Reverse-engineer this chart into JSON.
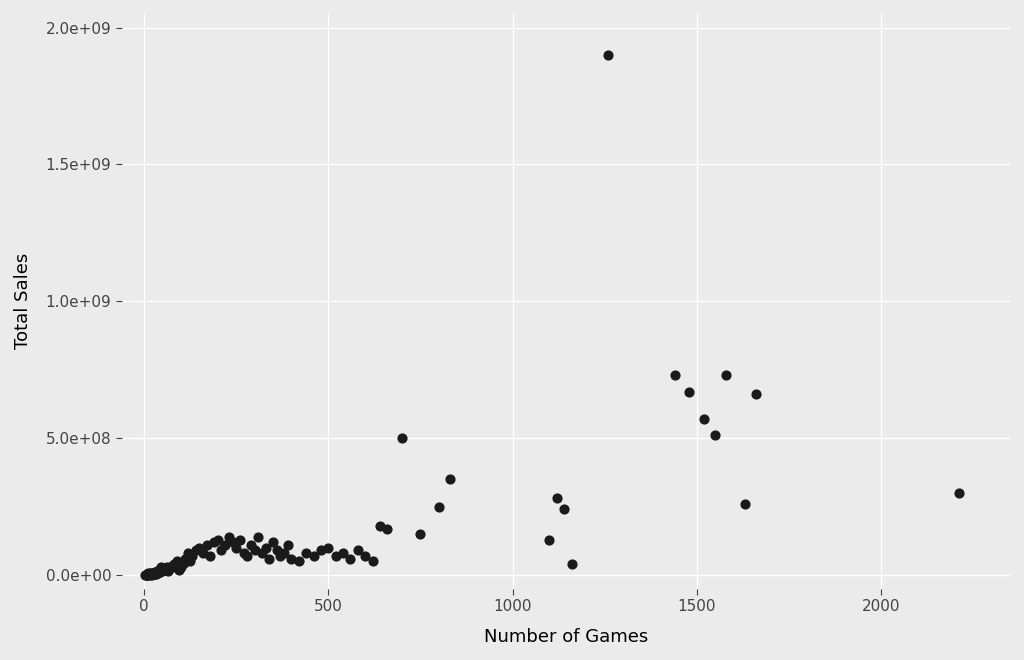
{
  "title": "",
  "xlabel": "Number of Games",
  "ylabel": "Total Sales",
  "background_color": "#EBEBEB",
  "point_color": "#1a1a1a",
  "point_size": 40,
  "xlim": [
    -60,
    2350
  ],
  "ylim": [
    -50000000.0,
    2050000000.0
  ],
  "xticks": [
    0,
    500,
    1000,
    1500,
    2000
  ],
  "yticks": [
    0.0,
    500000000.0,
    1000000000.0,
    1500000000.0,
    2000000000.0
  ],
  "grid_color": "#ffffff",
  "x": [
    3,
    5,
    7,
    8,
    9,
    10,
    11,
    12,
    14,
    15,
    16,
    17,
    18,
    20,
    22,
    23,
    25,
    26,
    27,
    29,
    30,
    32,
    34,
    36,
    38,
    40,
    42,
    45,
    48,
    50,
    55,
    58,
    62,
    65,
    70,
    75,
    80,
    85,
    90,
    95,
    100,
    108,
    112,
    118,
    125,
    130,
    140,
    150,
    160,
    170,
    180,
    190,
    200,
    210,
    220,
    230,
    240,
    250,
    260,
    270,
    280,
    290,
    300,
    310,
    320,
    330,
    340,
    350,
    360,
    370,
    380,
    390,
    400,
    420,
    440,
    460,
    480,
    500,
    520,
    540,
    560,
    580,
    600,
    620,
    640,
    660,
    700,
    750,
    800,
    830,
    1100,
    1120,
    1140,
    1160,
    1260,
    1440,
    1480,
    1520,
    1550,
    1580,
    1630,
    1660,
    2210
  ],
  "y": [
    2000000.0,
    1000000.0,
    500000.0,
    3000000.0,
    2000000.0,
    4000000.0,
    1000000.0,
    8000000.0,
    3000000.0,
    5000000.0,
    2000000.0,
    8000000.0,
    4000000.0,
    6000000.0,
    2000000.0,
    9000000.0,
    3000000.0,
    5000000.0,
    7000000.0,
    4000000.0,
    12000000.0,
    5000000.0,
    8000000.0,
    15000000.0,
    6000000.0,
    20000000.0,
    10000000.0,
    30000000.0,
    15000000.0,
    18000000.0,
    20000000.0,
    25000000.0,
    30000000.0,
    15000000.0,
    25000000.0,
    35000000.0,
    40000000.0,
    30000000.0,
    50000000.0,
    20000000.0,
    30000000.0,
    45000000.0,
    60000000.0,
    80000000.0,
    50000000.0,
    70000000.0,
    90000000.0,
    100000000.0,
    80000000.0,
    110000000.0,
    70000000.0,
    120000000.0,
    130000000.0,
    90000000.0,
    110000000.0,
    140000000.0,
    120000000.0,
    100000000.0,
    130000000.0,
    80000000.0,
    70000000.0,
    110000000.0,
    90000000.0,
    140000000.0,
    80000000.0,
    100000000.0,
    60000000.0,
    120000000.0,
    90000000.0,
    70000000.0,
    80000000.0,
    110000000.0,
    60000000.0,
    50000000.0,
    80000000.0,
    70000000.0,
    90000000.0,
    100000000.0,
    70000000.0,
    80000000.0,
    60000000.0,
    90000000.0,
    70000000.0,
    50000000.0,
    180000000.0,
    170000000.0,
    500000000.0,
    150000000.0,
    250000000.0,
    350000000.0,
    130000000.0,
    280000000.0,
    240000000.0,
    40000000.0,
    1900000000.0,
    730000000.0,
    670000000.0,
    570000000.0,
    510000000.0,
    730000000.0,
    260000000.0,
    660000000.0,
    300000000.0
  ]
}
